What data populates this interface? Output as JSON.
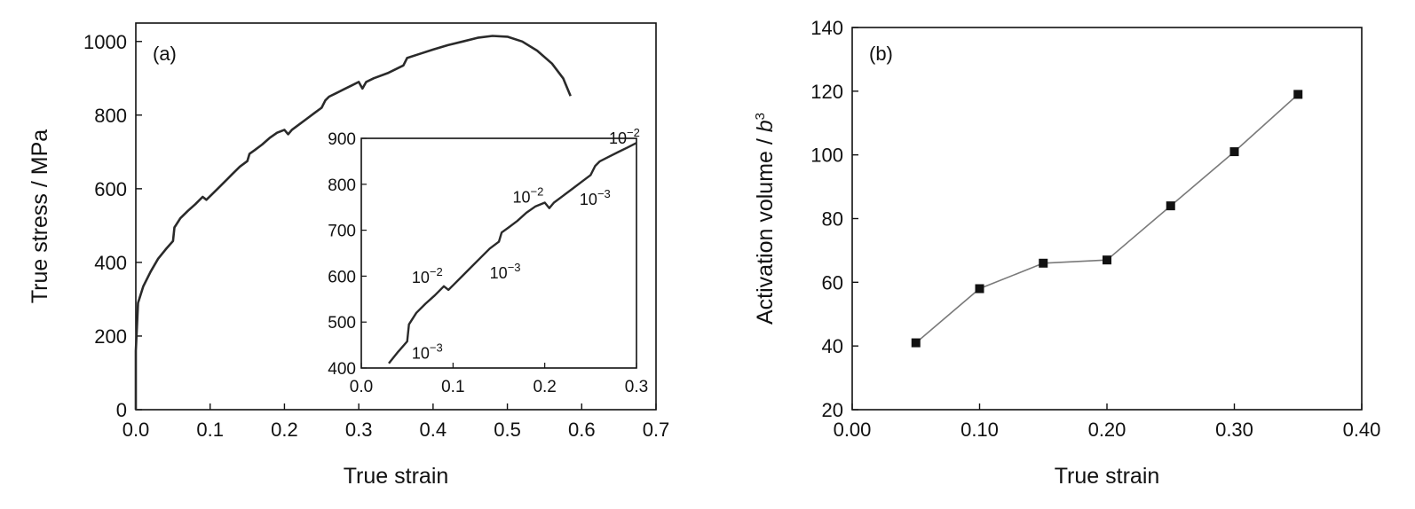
{
  "chart_data": [
    {
      "type": "line",
      "panel_label": "(a)",
      "xlabel": "True strain",
      "ylabel": "True stress / MPa",
      "xlim": [
        0.0,
        0.7
      ],
      "ylim": [
        0,
        1050
      ],
      "x_ticks": [
        0.0,
        0.1,
        0.2,
        0.3,
        0.4,
        0.5,
        0.6,
        0.7
      ],
      "x_tick_labels": [
        "0.0",
        "0.1",
        "0.2",
        "0.3",
        "0.4",
        "0.5",
        "0.6",
        "0.7"
      ],
      "y_ticks": [
        0,
        200,
        400,
        600,
        800,
        1000
      ],
      "y_tick_labels": [
        "0",
        "200",
        "400",
        "600",
        "800",
        "1000"
      ],
      "grid": false,
      "series": [
        {
          "color": "#2a2a2a",
          "x": [
            0.0,
            0.0,
            0.003,
            0.01,
            0.02,
            0.03,
            0.04,
            0.05,
            0.052,
            0.06,
            0.07,
            0.08,
            0.09,
            0.095,
            0.1,
            0.11,
            0.12,
            0.13,
            0.14,
            0.15,
            0.153,
            0.16,
            0.17,
            0.18,
            0.19,
            0.2,
            0.205,
            0.21,
            0.22,
            0.23,
            0.24,
            0.25,
            0.255,
            0.26,
            0.27,
            0.28,
            0.29,
            0.3,
            0.305,
            0.31,
            0.32,
            0.34,
            0.36,
            0.365,
            0.38,
            0.4,
            0.42,
            0.44,
            0.46,
            0.48,
            0.5,
            0.52,
            0.54,
            0.56,
            0.575,
            0.585
          ],
          "y": [
            0,
            160,
            290,
            335,
            375,
            410,
            435,
            458,
            495,
            520,
            540,
            558,
            578,
            570,
            580,
            600,
            620,
            640,
            660,
            675,
            695,
            705,
            720,
            738,
            752,
            760,
            748,
            760,
            775,
            790,
            805,
            820,
            840,
            850,
            860,
            870,
            880,
            890,
            872,
            890,
            900,
            915,
            935,
            955,
            965,
            978,
            990,
            1000,
            1010,
            1015,
            1013,
            1000,
            975,
            940,
            900,
            852
          ]
        }
      ],
      "inset": {
        "type": "line",
        "xlim": [
          0.0,
          0.3
        ],
        "ylim": [
          400,
          900
        ],
        "x_ticks": [
          0.0,
          0.1,
          0.2,
          0.3
        ],
        "x_tick_labels": [
          "0.0",
          "0.1",
          "0.2",
          "0.3"
        ],
        "y_ticks": [
          400,
          500,
          600,
          700,
          800,
          900
        ],
        "y_tick_labels": [
          "400",
          "500",
          "600",
          "700",
          "800",
          "900"
        ],
        "series": [
          {
            "color": "#2a2a2a",
            "x": [
              0.03,
              0.04,
              0.05,
              0.052,
              0.06,
              0.07,
              0.08,
              0.09,
              0.095,
              0.1,
              0.11,
              0.12,
              0.13,
              0.14,
              0.15,
              0.153,
              0.16,
              0.17,
              0.18,
              0.19,
              0.2,
              0.205,
              0.21,
              0.22,
              0.23,
              0.24,
              0.25,
              0.255,
              0.26,
              0.27,
              0.28,
              0.29,
              0.3
            ],
            "y": [
              410,
              435,
              458,
              495,
              520,
              540,
              558,
              578,
              570,
              580,
              600,
              620,
              640,
              660,
              675,
              695,
              705,
              720,
              738,
              752,
              760,
              748,
              760,
              775,
              790,
              805,
              820,
              840,
              850,
              860,
              870,
              880,
              890
            ]
          }
        ],
        "annotations": [
          {
            "base": "10",
            "exp": "−3",
            "x": 0.055,
            "y": 420
          },
          {
            "base": "10",
            "exp": "−2",
            "x": 0.055,
            "y": 585
          },
          {
            "base": "10",
            "exp": "−3",
            "x": 0.14,
            "y": 595
          },
          {
            "base": "10",
            "exp": "−2",
            "x": 0.165,
            "y": 760
          },
          {
            "base": "10",
            "exp": "−3",
            "x": 0.238,
            "y": 755
          },
          {
            "base": "10",
            "exp": "−2",
            "x": 0.27,
            "y": 888
          }
        ]
      }
    },
    {
      "type": "line",
      "panel_label": "(b)",
      "xlabel": "True strain",
      "ylabel": "Activation volume / ",
      "ylabel_symbol": "b",
      "ylabel_symbol_exp": "3",
      "xlim": [
        0.0,
        0.4
      ],
      "ylim": [
        20,
        140
      ],
      "x_ticks": [
        0.0,
        0.1,
        0.2,
        0.3,
        0.4
      ],
      "x_tick_labels": [
        "0.00",
        "0.10",
        "0.20",
        "0.30",
        "0.40"
      ],
      "y_ticks": [
        20,
        40,
        60,
        80,
        100,
        120,
        140
      ],
      "y_tick_labels": [
        "20",
        "40",
        "60",
        "80",
        "100",
        "120",
        "140"
      ],
      "grid": false,
      "series": [
        {
          "color": "#7a7a7a",
          "marker": "square",
          "x": [
            0.05,
            0.1,
            0.15,
            0.2,
            0.25,
            0.3,
            0.35
          ],
          "y": [
            41,
            58,
            66,
            67,
            84,
            101,
            119
          ]
        }
      ]
    }
  ]
}
